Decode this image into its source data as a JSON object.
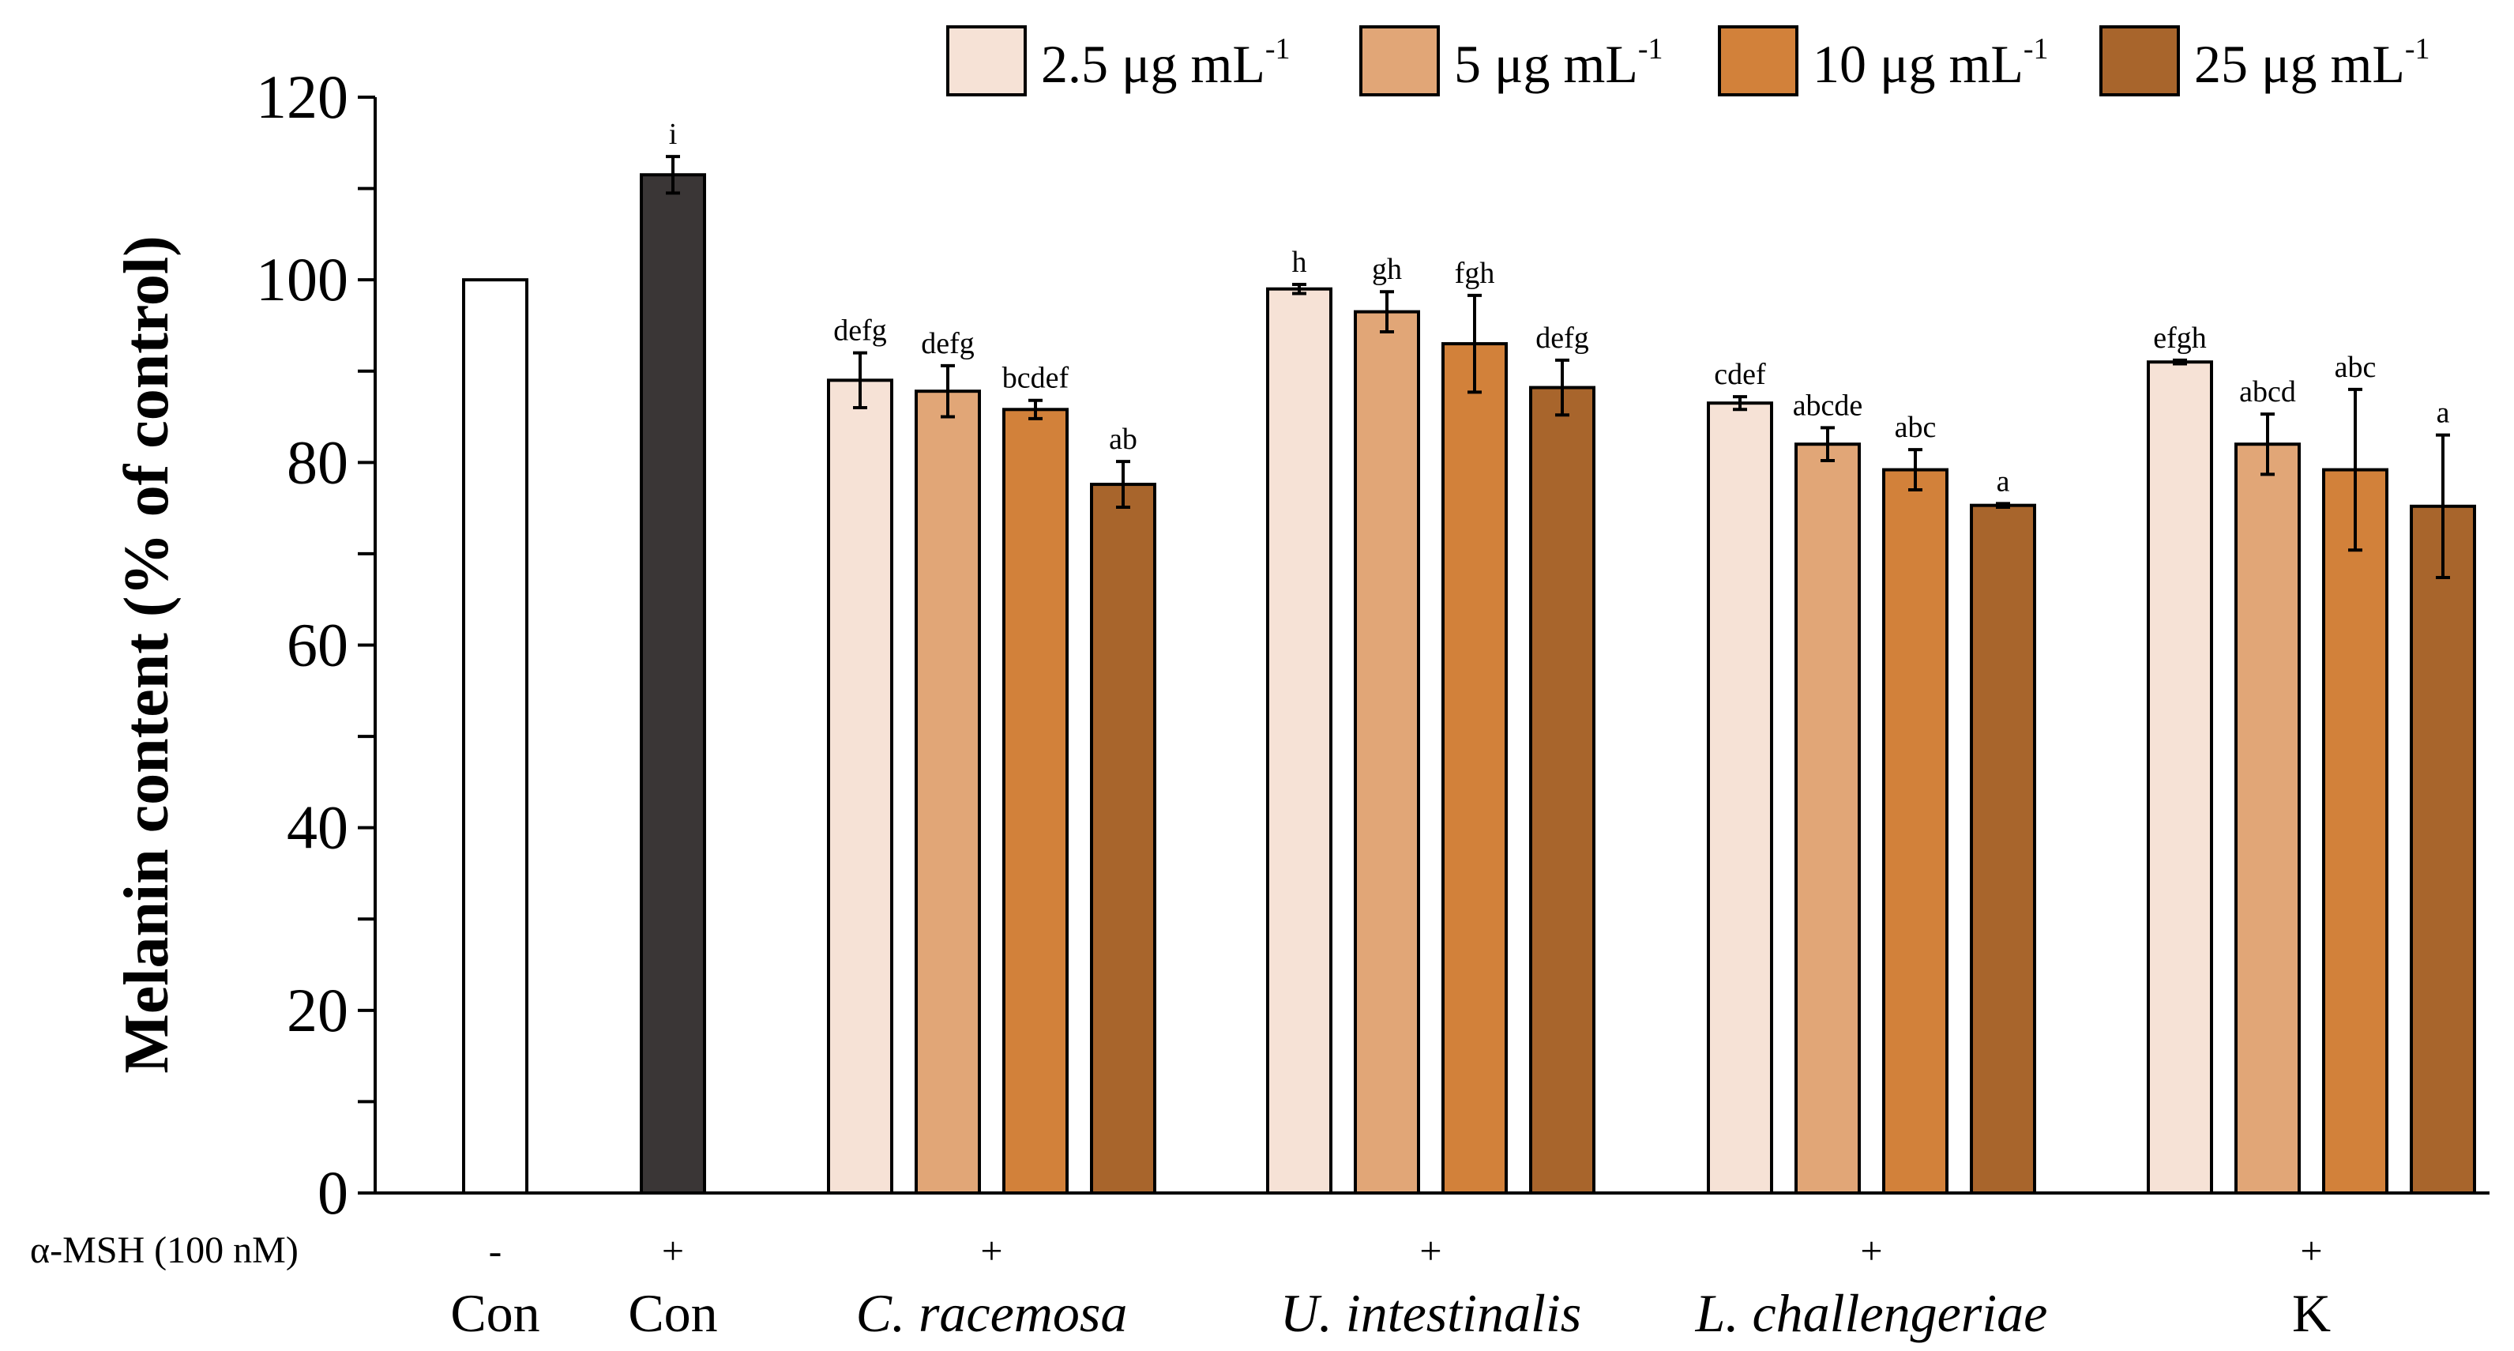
{
  "chart_data": {
    "type": "bar",
    "ylabel": "Melanin content (% of control)",
    "ylim": [
      0,
      120
    ],
    "yticks": [
      0,
      20,
      40,
      60,
      80,
      100,
      120
    ],
    "colors": {
      "neg_control": "#ffffff",
      "pos_control": "#3a3636",
      "series": [
        "#f6e2d6",
        "#e1a677",
        "#d2813a",
        "#a8652c"
      ],
      "stroke": "#000000"
    },
    "msh_label": "α-MSH (100 nM)",
    "legend": [
      {
        "label": "2.5 μg mL",
        "sup": "-1"
      },
      {
        "label": "5 μg mL",
        "sup": "-1"
      },
      {
        "label": "10 μg mL",
        "sup": "-1"
      },
      {
        "label": "25 μg mL",
        "sup": "-1"
      }
    ],
    "controls": [
      {
        "name": "Con",
        "msh": "-",
        "value": 100,
        "error": 0,
        "sig": ""
      },
      {
        "name": "Con",
        "msh": "+",
        "value": 111.5,
        "error": 2.0,
        "sig": "i"
      }
    ],
    "groups": [
      {
        "name": "C. racemosa",
        "italic": true,
        "msh": "+",
        "values": [
          89,
          87.8,
          85.8,
          77.6
        ],
        "errors": [
          3.0,
          2.8,
          1.0,
          2.5
        ],
        "sig": [
          "defg",
          "defg",
          "bcdef",
          "ab"
        ]
      },
      {
        "name": "U. intestinalis",
        "italic": true,
        "msh": "+",
        "values": [
          99,
          96.5,
          93,
          88.2
        ],
        "errors": [
          0.5,
          2.2,
          5.3,
          3.0
        ],
        "sig": [
          "h",
          "gh",
          "fgh",
          "defg"
        ]
      },
      {
        "name": "L. challengeriae",
        "italic": true,
        "msh": "+",
        "values": [
          86.5,
          82,
          79.2,
          75.3
        ],
        "errors": [
          0.7,
          1.8,
          2.2,
          0.2
        ],
        "sig": [
          "cdef",
          "abcde",
          "abc",
          "a"
        ]
      },
      {
        "name": "K",
        "italic": false,
        "msh": "+",
        "values": [
          91,
          82,
          79.2,
          75.2
        ],
        "errors": [
          0.2,
          3.3,
          8.8,
          7.8
        ],
        "sig": [
          "efgh",
          "abcd",
          "abc",
          "a"
        ]
      }
    ]
  }
}
